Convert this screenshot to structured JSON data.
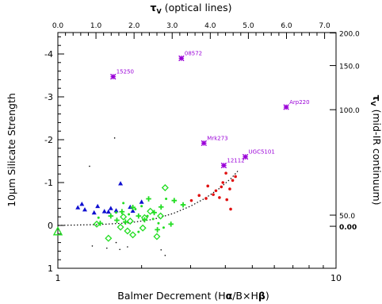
{
  "chart_data": {
    "type": "scatter",
    "title": "",
    "top_axis": {
      "label": "τ_V (optical lines)",
      "label_main": "τ",
      "label_sub": "V",
      "label_rest": " (optical lines)",
      "ticks": [
        "0.0",
        "1.0",
        "2.0",
        "3.0",
        "4.0",
        "5.0",
        "6.0",
        "7.0"
      ]
    },
    "right_axis": {
      "label": "τ_V (mid-IR continuum)",
      "label_main": "τ",
      "label_sub": "V",
      "label_rest": " (mid-IR continuum)",
      "ticks": [
        {
          "label": "200.0",
          "s": -4.49
        },
        {
          "label": "150.0",
          "s": -3.73
        },
        {
          "label": "100.0",
          "s": -2.7
        },
        {
          "label": "50.0",
          "s": -0.24
        },
        {
          "label": "0.00",
          "s": 0.02
        }
      ]
    },
    "xlabel": "Balmer Decrement (Hα/B×Hβ)",
    "xlabel_parts": {
      "pre": "Balmer Decrement (H",
      "alpha": "α",
      "mid": "/B×H",
      "beta": "β",
      "post": ")"
    },
    "xscale": "log",
    "xlim": [
      1,
      10
    ],
    "x_ticks": [
      "1",
      "10"
    ],
    "ylabel": "10μm Silicate Strength",
    "ylim": [
      1.0,
      -4.5
    ],
    "y_ticks": [
      "-4",
      "-3",
      "-2",
      "-1",
      "0",
      "1"
    ],
    "grid": false,
    "legend": "none",
    "colors": {
      "purple": "#9a00d8",
      "red": "#e01010",
      "green": "#22dd22",
      "blue": "#1010d0",
      "black": "#000000"
    },
    "series": [
      {
        "marker": "asterisk",
        "color": "#9a00d8",
        "points": [
          {
            "x": 1.58,
            "y": -3.47,
            "label": "15250"
          },
          {
            "x": 2.78,
            "y": -3.9,
            "label": "08572"
          },
          {
            "x": 3.35,
            "y": -1.92,
            "label": "Mrk273"
          },
          {
            "x": 3.95,
            "y": -1.4,
            "label": "12112"
          },
          {
            "x": 4.72,
            "y": -1.6,
            "label": "UGC5101"
          },
          {
            "x": 6.62,
            "y": -2.76,
            "label": "Arp220"
          }
        ]
      },
      {
        "marker": "dot",
        "color": "#e01010",
        "points": [
          {
            "x": 3.02,
            "y": -0.58
          },
          {
            "x": 3.22,
            "y": -0.7
          },
          {
            "x": 3.41,
            "y": -0.63
          },
          {
            "x": 3.46,
            "y": -0.92
          },
          {
            "x": 3.62,
            "y": -0.72
          },
          {
            "x": 3.7,
            "y": -0.81
          },
          {
            "x": 3.81,
            "y": -0.65
          },
          {
            "x": 3.87,
            "y": -0.9
          },
          {
            "x": 3.92,
            "y": -1.0
          },
          {
            "x": 4.02,
            "y": -1.22
          },
          {
            "x": 4.05,
            "y": -0.6
          },
          {
            "x": 4.15,
            "y": -0.85
          },
          {
            "x": 4.18,
            "y": -0.38
          },
          {
            "x": 4.25,
            "y": -1.05
          },
          {
            "x": 4.35,
            "y": -1.14
          }
        ]
      },
      {
        "marker": "triangle",
        "color": "#1010d0",
        "points": [
          {
            "x": 1.18,
            "y": -0.42
          },
          {
            "x": 1.22,
            "y": -0.5
          },
          {
            "x": 1.25,
            "y": -0.37
          },
          {
            "x": 1.35,
            "y": -0.3
          },
          {
            "x": 1.39,
            "y": -0.45
          },
          {
            "x": 1.47,
            "y": -0.33
          },
          {
            "x": 1.52,
            "y": -0.32
          },
          {
            "x": 1.55,
            "y": -0.4
          },
          {
            "x": 1.62,
            "y": -0.35
          },
          {
            "x": 1.68,
            "y": -0.98
          },
          {
            "x": 1.82,
            "y": -0.43
          },
          {
            "x": 1.86,
            "y": -0.34
          },
          {
            "x": 2.0,
            "y": -0.55
          }
        ]
      },
      {
        "marker": "plus",
        "color": "#22dd22",
        "points": [
          {
            "x": 1.42,
            "y": -0.05
          },
          {
            "x": 1.55,
            "y": -0.22
          },
          {
            "x": 1.63,
            "y": -0.12
          },
          {
            "x": 1.7,
            "y": -0.32
          },
          {
            "x": 1.75,
            "y": -0.08
          },
          {
            "x": 1.86,
            "y": -0.42
          },
          {
            "x": 1.95,
            "y": -0.22
          },
          {
            "x": 2.05,
            "y": -0.13
          },
          {
            "x": 2.12,
            "y": -0.62
          },
          {
            "x": 2.22,
            "y": -0.3
          },
          {
            "x": 2.35,
            "y": -0.43
          },
          {
            "x": 2.62,
            "y": -0.58
          },
          {
            "x": 2.82,
            "y": -0.48
          },
          {
            "x": 2.28,
            "y": 0.1
          },
          {
            "x": 2.55,
            "y": -0.03
          }
        ]
      },
      {
        "marker": "diamond",
        "color": "#22dd22",
        "points": [
          {
            "x": 1.38,
            "y": -0.03
          },
          {
            "x": 1.52,
            "y": 0.3
          },
          {
            "x": 1.68,
            "y": 0.04
          },
          {
            "x": 1.72,
            "y": -0.2
          },
          {
            "x": 1.78,
            "y": 0.13
          },
          {
            "x": 1.82,
            "y": -0.1
          },
          {
            "x": 1.86,
            "y": 0.22
          },
          {
            "x": 2.02,
            "y": 0.06
          },
          {
            "x": 2.05,
            "y": -0.18
          },
          {
            "x": 2.15,
            "y": -0.33
          },
          {
            "x": 2.27,
            "y": 0.26
          },
          {
            "x": 2.34,
            "y": -0.22
          },
          {
            "x": 2.43,
            "y": -0.88
          }
        ]
      },
      {
        "marker": "small-dot",
        "color": "#22dd22",
        "points": [
          {
            "x": 1.62,
            "y": -0.3
          },
          {
            "x": 1.8,
            "y": -0.26
          },
          {
            "x": 1.9,
            "y": -0.38
          },
          {
            "x": 2.0,
            "y": -0.45
          },
          {
            "x": 2.1,
            "y": -0.22
          },
          {
            "x": 2.2,
            "y": -0.15
          },
          {
            "x": 2.3,
            "y": -0.05
          },
          {
            "x": 2.45,
            "y": -0.62
          },
          {
            "x": 1.4,
            "y": -0.18
          },
          {
            "x": 1.95,
            "y": 0.15
          },
          {
            "x": 2.4,
            "y": 0.05
          },
          {
            "x": 1.72,
            "y": -0.52
          }
        ]
      },
      {
        "marker": "big-triangle",
        "color": "#22dd22",
        "points": [
          {
            "x": 1.0,
            "y": 0.14
          }
        ]
      },
      {
        "marker": "tiny-dot",
        "color": "#000000",
        "points": [
          {
            "x": 1.33,
            "y": 0.48
          },
          {
            "x": 1.5,
            "y": 0.53
          },
          {
            "x": 1.6,
            "y": -2.04
          },
          {
            "x": 1.62,
            "y": 0.4
          },
          {
            "x": 1.67,
            "y": 0.56
          },
          {
            "x": 1.78,
            "y": 0.5
          },
          {
            "x": 2.35,
            "y": 0.57
          },
          {
            "x": 2.43,
            "y": 0.7
          },
          {
            "x": 1.3,
            "y": -1.38
          }
        ]
      }
    ],
    "curve": {
      "style": "dotted",
      "color": "#000000",
      "points": [
        {
          "x": 1.0,
          "y": 0.0
        },
        {
          "x": 1.4,
          "y": -0.02
        },
        {
          "x": 1.8,
          "y": -0.06
        },
        {
          "x": 2.2,
          "y": -0.14
        },
        {
          "x": 2.6,
          "y": -0.28
        },
        {
          "x": 3.0,
          "y": -0.45
        },
        {
          "x": 3.4,
          "y": -0.64
        },
        {
          "x": 3.8,
          "y": -0.86
        },
        {
          "x": 4.2,
          "y": -1.1
        },
        {
          "x": 4.45,
          "y": -1.28
        }
      ]
    }
  }
}
